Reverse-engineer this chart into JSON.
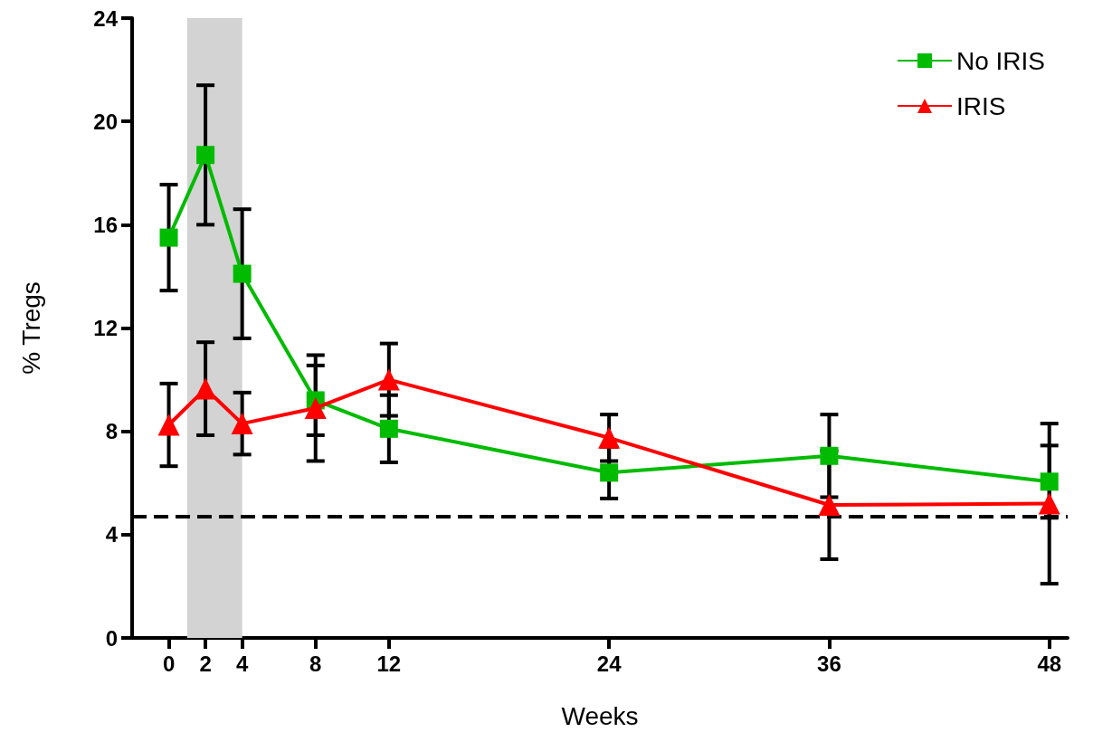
{
  "chart_data": {
    "type": "line",
    "xlabel": "Weeks",
    "ylabel": "% Tregs",
    "x": [
      0,
      2,
      4,
      8,
      12,
      24,
      36,
      48
    ],
    "xlim": [
      -2,
      49
    ],
    "xticks": [
      0,
      2,
      4,
      8,
      12,
      24,
      36,
      48
    ],
    "ylim": [
      0,
      24
    ],
    "yticks": [
      0,
      4,
      8,
      12,
      16,
      20,
      24
    ],
    "series": [
      {
        "name": "No IRIS",
        "color": "#00bb00",
        "marker": "square",
        "values": [
          15.5,
          18.7,
          14.1,
          9.2,
          8.1,
          6.4,
          7.05,
          6.05
        ],
        "errors": [
          2.05,
          2.7,
          2.5,
          1.35,
          1.3,
          1.0,
          1.6,
          1.4
        ]
      },
      {
        "name": "IRIS",
        "color": "#ff0000",
        "marker": "triangle",
        "values": [
          8.25,
          9.65,
          8.3,
          8.9,
          10.0,
          7.75,
          5.15,
          5.2
        ],
        "errors": [
          1.6,
          1.8,
          1.2,
          2.05,
          1.4,
          0.9,
          2.1,
          3.1
        ]
      }
    ],
    "bands": [
      {
        "axis": "x",
        "from": 1,
        "to": 4,
        "color": "#d3d3d3"
      }
    ],
    "ref_lines": [
      {
        "axis": "y",
        "value": 4.7,
        "color": "#000000",
        "line_style": "dashed"
      }
    ],
    "grid": false,
    "legend": "top right",
    "line_style": "solid"
  }
}
